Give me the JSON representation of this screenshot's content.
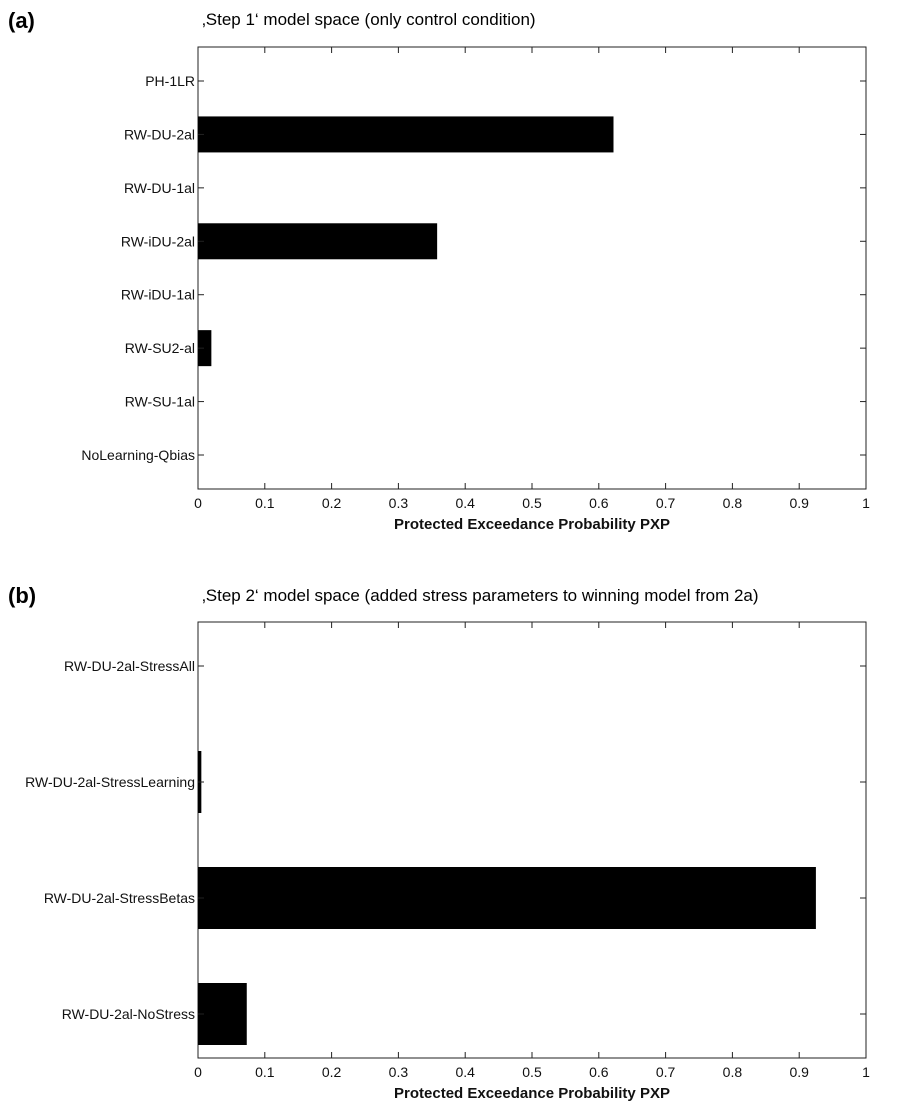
{
  "chart_data": [
    {
      "type": "bar",
      "orientation": "horizontal",
      "panel_label": "(a)",
      "title": "‚Step 1‘ model space (only control condition)",
      "xlabel": "Protected Exceedance Probability PXP",
      "ylabel": "",
      "xlim": [
        0,
        1
      ],
      "xticks": [
        "0",
        "0.1",
        "0.2",
        "0.3",
        "0.4",
        "0.5",
        "0.6",
        "0.7",
        "0.8",
        "0.9",
        "1"
      ],
      "categories": [
        "PH-1LR",
        "RW-DU-2al",
        "RW-DU-1al",
        "RW-iDU-2al",
        "RW-iDU-1al",
        "RW-SU2-al",
        "RW-SU-1al",
        "NoLearning-Qbias"
      ],
      "values": [
        0,
        0.622,
        0,
        0.358,
        0,
        0.02,
        0,
        0
      ],
      "bar_color": "#000000",
      "grid": false
    },
    {
      "type": "bar",
      "orientation": "horizontal",
      "panel_label": "(b)",
      "title": "‚Step 2‘ model space (added stress parameters to winning model from 2a)",
      "xlabel": "Protected Exceedance Probability PXP",
      "ylabel": "",
      "xlim": [
        0,
        1
      ],
      "xticks": [
        "0",
        "0.1",
        "0.2",
        "0.3",
        "0.4",
        "0.5",
        "0.6",
        "0.7",
        "0.8",
        "0.9",
        "1"
      ],
      "categories": [
        "RW-DU-2al-StressAll",
        "RW-DU-2al-StressLearning",
        "RW-DU-2al-StressBetas",
        "RW-DU-2al-NoStress"
      ],
      "values": [
        0,
        0.005,
        0.925,
        0.073
      ],
      "bar_color": "#000000",
      "grid": false
    }
  ]
}
